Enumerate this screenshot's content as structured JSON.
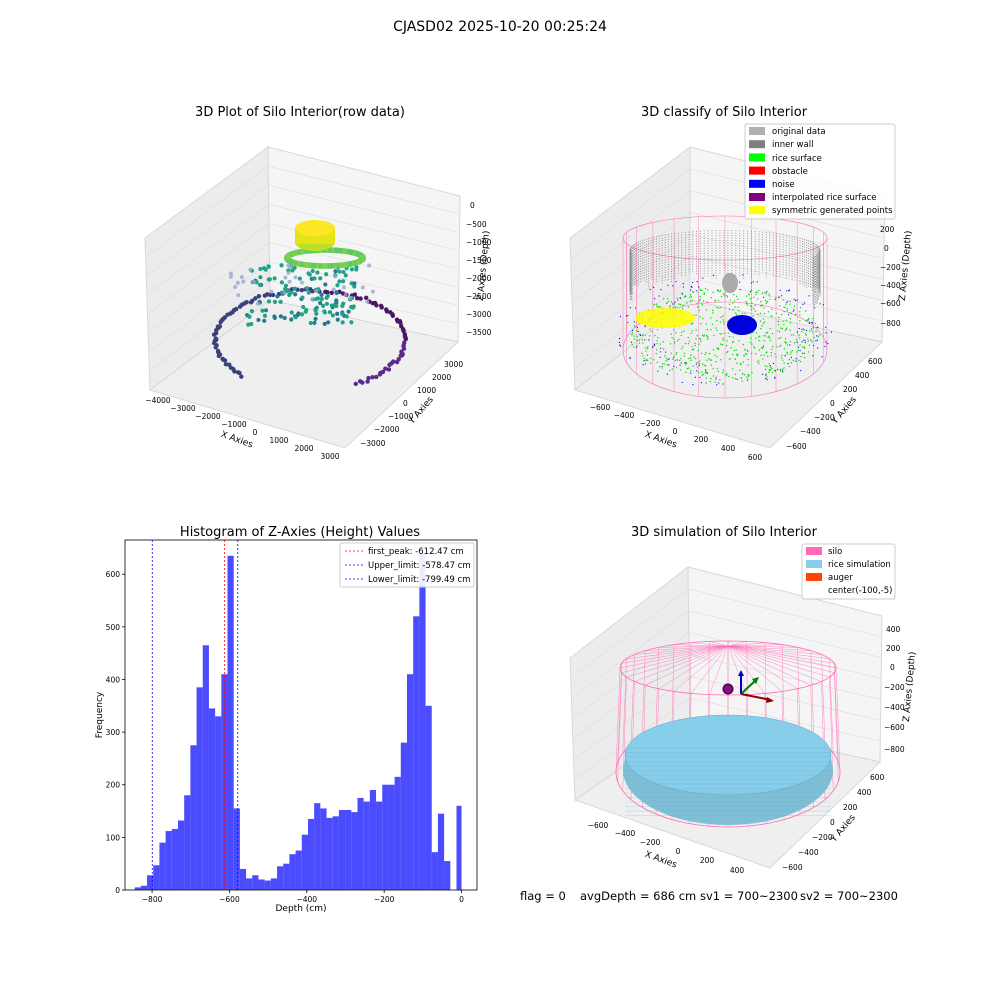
{
  "figure": {
    "suptitle": "CJASD02 2025-10-20 00:25:24",
    "status": {
      "flag": "flag = 0",
      "avg_depth": "avgDepth = 686 cm",
      "sv1": "sv1 = 700~2300",
      "sv2": "sv2 = 700~2300"
    }
  },
  "panels": {
    "raw": {
      "title": "3D Plot of Silo Interior(row data)",
      "xlabel": "X Axies",
      "ylabel": "Y Axies",
      "zlabel": "Z Axies (Depth)",
      "xticks": [
        "−4000",
        "−3000",
        "−2000",
        "−1000",
        "0",
        "1000",
        "2000",
        "3000"
      ],
      "yticks": [
        "3000",
        "2000",
        "1000",
        "0",
        "−1000",
        "−2000",
        "−3000"
      ],
      "zticks": [
        "0",
        "−500",
        "−1000",
        "−1500",
        "−2000",
        "−2500",
        "−3000",
        "−3500"
      ]
    },
    "classify": {
      "title": "3D classify of Silo Interior",
      "xlabel": "X Axies",
      "ylabel": "Y Axies",
      "zlabel": "Z Axies (Depth)",
      "xticks": [
        "−600",
        "−400",
        "−200",
        "0",
        "200",
        "400",
        "600"
      ],
      "yticks": [
        "600",
        "400",
        "200",
        "0",
        "−200",
        "−400",
        "−600"
      ],
      "zticks": [
        "200",
        "0",
        "−200",
        "−400",
        "−600",
        "−800"
      ],
      "legend": [
        {
          "label": "original data",
          "color": "#b0b0b0"
        },
        {
          "label": "inner wall",
          "color": "#808080"
        },
        {
          "label": "rice surface",
          "color": "#00ff00"
        },
        {
          "label": "obstacle",
          "color": "#ff0000"
        },
        {
          "label": "noise",
          "color": "#0000ff"
        },
        {
          "label": "interpolated rice surface",
          "color": "#800080"
        },
        {
          "label": "symmetric generated points",
          "color": "#ffff00"
        }
      ]
    },
    "simulation": {
      "title": "3D simulation of Silo Interior",
      "xlabel": "X Axies",
      "ylabel": "Y Axies",
      "zlabel": "Z Axies (Depth)",
      "xticks": [
        "−600",
        "−400",
        "−200",
        "0",
        "200",
        "400"
      ],
      "yticks": [
        "600",
        "400",
        "200",
        "0",
        "−200",
        "−400",
        "−600"
      ],
      "zticks": [
        "400",
        "200",
        "0",
        "−200",
        "−400",
        "−600",
        "−800"
      ],
      "legend": [
        {
          "label": "silo",
          "color": "#ff69b4"
        },
        {
          "label": "rice simulation",
          "color": "#87ceeb"
        },
        {
          "label": "auger",
          "color": "#ff4500"
        },
        {
          "label": "center(-100,-5)",
          "color": ""
        }
      ]
    }
  },
  "chart_data": {
    "type": "bar",
    "title": "Histogram of Z-Axies (Height) Values",
    "xlabel": "Depth (cm)",
    "ylabel": "Frequency",
    "xlim": [
      -870,
      40
    ],
    "ylim": [
      0,
      665
    ],
    "bar_color": "#0000ff",
    "xticks": [
      -800,
      -600,
      -400,
      -200,
      0
    ],
    "yticks": [
      0,
      100,
      200,
      300,
      400,
      500,
      600
    ],
    "bin_edges": [
      -845,
      -829,
      -813,
      -797,
      -781,
      -765,
      -749,
      -733,
      -717,
      -701,
      -685,
      -669,
      -653,
      -637,
      -621,
      -605,
      -589,
      -573,
      -557,
      -541,
      -525,
      -509,
      -493,
      -477,
      -461,
      -445,
      -429,
      -413,
      -397,
      -381,
      -365,
      -349,
      -333,
      -317,
      -301,
      -285,
      -269,
      -253,
      -237,
      -221,
      -205,
      -189,
      -173,
      -157,
      -141,
      -125,
      -109,
      -93,
      -77,
      -61,
      -45,
      -29,
      -13,
      0
    ],
    "counts": [
      5,
      8,
      28,
      47,
      90,
      112,
      116,
      132,
      180,
      275,
      385,
      465,
      345,
      330,
      410,
      635,
      155,
      40,
      22,
      28,
      20,
      18,
      22,
      45,
      50,
      68,
      75,
      105,
      135,
      165,
      155,
      137,
      140,
      152,
      152,
      148,
      175,
      168,
      190,
      168,
      200,
      200,
      215,
      280,
      410,
      520,
      640,
      350,
      72,
      145,
      55,
      0,
      160
    ],
    "lines": [
      {
        "label": "first_peak: -612.47 cm",
        "x": -612.47,
        "color": "#ff0000"
      },
      {
        "label": "Upper_limit: -578.47 cm",
        "x": -578.47,
        "color": "#0000ff"
      },
      {
        "label": "Lower_limit: -799.49 cm",
        "x": -799.49,
        "color": "#0000ff"
      }
    ]
  }
}
